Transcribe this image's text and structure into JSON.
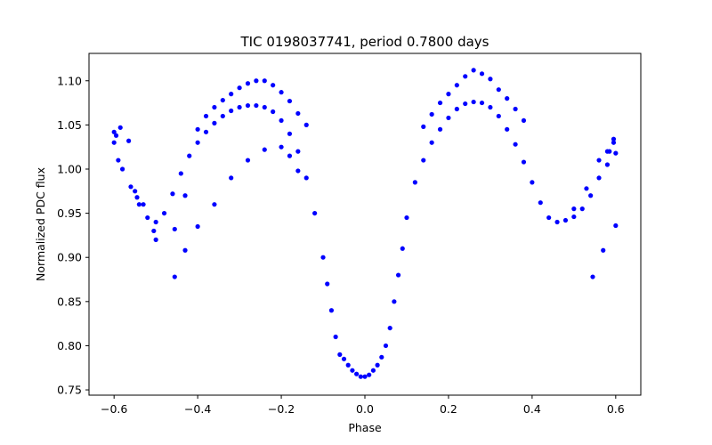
{
  "chart_data": {
    "type": "scatter",
    "title": "TIC 0198037741, period 0.7800 days",
    "xlabel": "Phase",
    "ylabel": "Normalized PDC flux",
    "xlim": [
      -0.66,
      0.66
    ],
    "ylim": [
      0.744,
      1.131
    ],
    "x_ticks": [
      "−0.6",
      "−0.4",
      "−0.2",
      "0.0",
      "0.2",
      "0.4",
      "0.6"
    ],
    "y_ticks": [
      "0.75",
      "0.80",
      "0.85",
      "0.90",
      "0.95",
      "1.00",
      "1.05",
      "1.10"
    ],
    "grid": false,
    "marker_color": "#0000ff",
    "series": [
      {
        "name": "",
        "x": [
          -0.6,
          -0.58,
          -0.56,
          -0.54,
          -0.52,
          -0.5,
          -0.48,
          -0.46,
          -0.44,
          -0.42,
          -0.4,
          -0.38,
          -0.36,
          -0.34,
          -0.32,
          -0.3,
          -0.28,
          -0.26,
          -0.24,
          -0.22,
          -0.2,
          -0.18,
          -0.16,
          -0.14,
          -0.12,
          -0.1,
          -0.09,
          -0.08,
          -0.07,
          -0.06,
          -0.05,
          -0.04,
          -0.03,
          -0.02,
          -0.01,
          0.0,
          0.01,
          0.02,
          0.03,
          0.04,
          0.05,
          0.06,
          0.07,
          0.08,
          0.09,
          0.1,
          0.12,
          0.14,
          0.16,
          0.18,
          0.2,
          0.22,
          0.24,
          0.26,
          0.28,
          0.3,
          0.32,
          0.34,
          0.36,
          0.38,
          0.4,
          0.42,
          0.44,
          0.46,
          0.48,
          0.5,
          0.52,
          0.54,
          0.56,
          0.58,
          0.6,
          -0.6,
          -0.595,
          -0.585,
          -0.565,
          -0.545,
          -0.505,
          -0.455,
          -0.43,
          -0.4,
          -0.38,
          -0.36,
          -0.34,
          -0.32,
          -0.3,
          -0.28,
          -0.26,
          -0.24,
          -0.22,
          -0.2,
          -0.18,
          -0.16,
          -0.14,
          -0.59,
          -0.55,
          -0.53,
          -0.5,
          -0.455,
          -0.43,
          -0.4,
          -0.36,
          -0.32,
          -0.28,
          -0.24,
          -0.2,
          -0.18,
          -0.16,
          0.14,
          0.16,
          0.18,
          0.2,
          0.22,
          0.24,
          0.26,
          0.28,
          0.3,
          0.32,
          0.34,
          0.36,
          0.38,
          0.5,
          0.53,
          0.56,
          0.58,
          0.595,
          0.545,
          0.57,
          0.6,
          0.595,
          0.585
        ],
        "y": [
          1.03,
          1.0,
          0.98,
          0.96,
          0.945,
          0.94,
          0.95,
          0.972,
          0.995,
          1.015,
          1.03,
          1.042,
          1.052,
          1.06,
          1.066,
          1.07,
          1.072,
          1.072,
          1.07,
          1.065,
          1.055,
          1.04,
          1.02,
          0.99,
          0.95,
          0.9,
          0.87,
          0.84,
          0.81,
          0.79,
          0.785,
          0.778,
          0.772,
          0.768,
          0.765,
          0.765,
          0.767,
          0.772,
          0.778,
          0.787,
          0.8,
          0.82,
          0.85,
          0.88,
          0.91,
          0.945,
          0.985,
          1.01,
          1.03,
          1.045,
          1.058,
          1.068,
          1.074,
          1.076,
          1.075,
          1.07,
          1.06,
          1.045,
          1.028,
          1.008,
          0.985,
          0.962,
          0.945,
          0.94,
          0.942,
          0.946,
          0.955,
          0.97,
          0.99,
          1.005,
          1.018,
          1.042,
          1.038,
          1.047,
          1.032,
          0.968,
          0.93,
          0.932,
          0.97,
          1.045,
          1.06,
          1.07,
          1.078,
          1.085,
          1.092,
          1.097,
          1.1,
          1.1,
          1.095,
          1.087,
          1.077,
          1.063,
          1.05,
          1.01,
          0.975,
          0.96,
          0.92,
          0.878,
          0.908,
          0.935,
          0.96,
          0.99,
          1.01,
          1.022,
          1.025,
          1.015,
          0.998,
          1.048,
          1.062,
          1.075,
          1.085,
          1.095,
          1.105,
          1.112,
          1.108,
          1.102,
          1.09,
          1.08,
          1.068,
          1.055,
          0.955,
          0.978,
          1.01,
          1.02,
          1.034,
          0.878,
          0.908,
          0.936,
          1.03,
          1.02
        ]
      }
    ]
  }
}
